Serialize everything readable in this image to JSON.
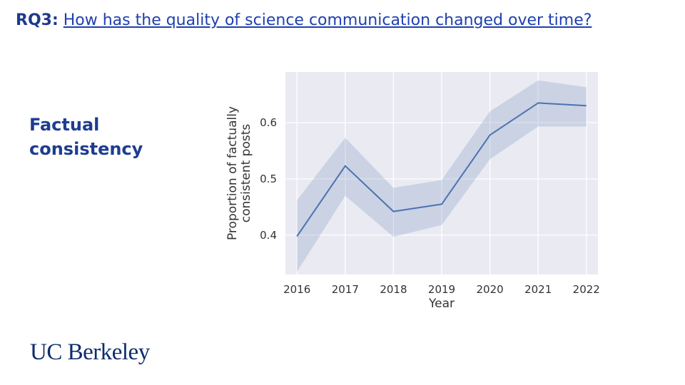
{
  "slide": {
    "rq_prefix": "RQ3:",
    "question": "How has the quality of science communication changed over time?",
    "side_label_line1": "Factual",
    "side_label_line2": "consistency",
    "logo_text": "UC Berkeley"
  },
  "colors": {
    "title_blue": "#1e3a8a",
    "line": "#4c72b0",
    "band": "#4c72b0",
    "plot_bg": "#eaeaf2"
  },
  "chart_data": {
    "type": "line",
    "title": "",
    "xlabel": "Year",
    "ylabel_line1": "Proportion of factually",
    "ylabel_line2": "consistent posts",
    "x": [
      2016,
      2017,
      2018,
      2019,
      2020,
      2021,
      2022
    ],
    "x_tick_labels": [
      "2016",
      "2017",
      "2018",
      "2019",
      "2020",
      "2021",
      "2022"
    ],
    "y_ticks": [
      0.4,
      0.5,
      0.6
    ],
    "y_tick_labels": [
      "0.4",
      "0.5",
      "0.6"
    ],
    "ylim": [
      0.33,
      0.69
    ],
    "grid": true,
    "series": [
      {
        "values": [
          0.398,
          0.523,
          0.442,
          0.455,
          0.578,
          0.635,
          0.63
        ],
        "ci_lower": [
          0.335,
          0.47,
          0.397,
          0.418,
          0.535,
          0.593,
          0.593
        ],
        "ci_upper": [
          0.462,
          0.573,
          0.484,
          0.498,
          0.62,
          0.675,
          0.663
        ]
      }
    ]
  }
}
